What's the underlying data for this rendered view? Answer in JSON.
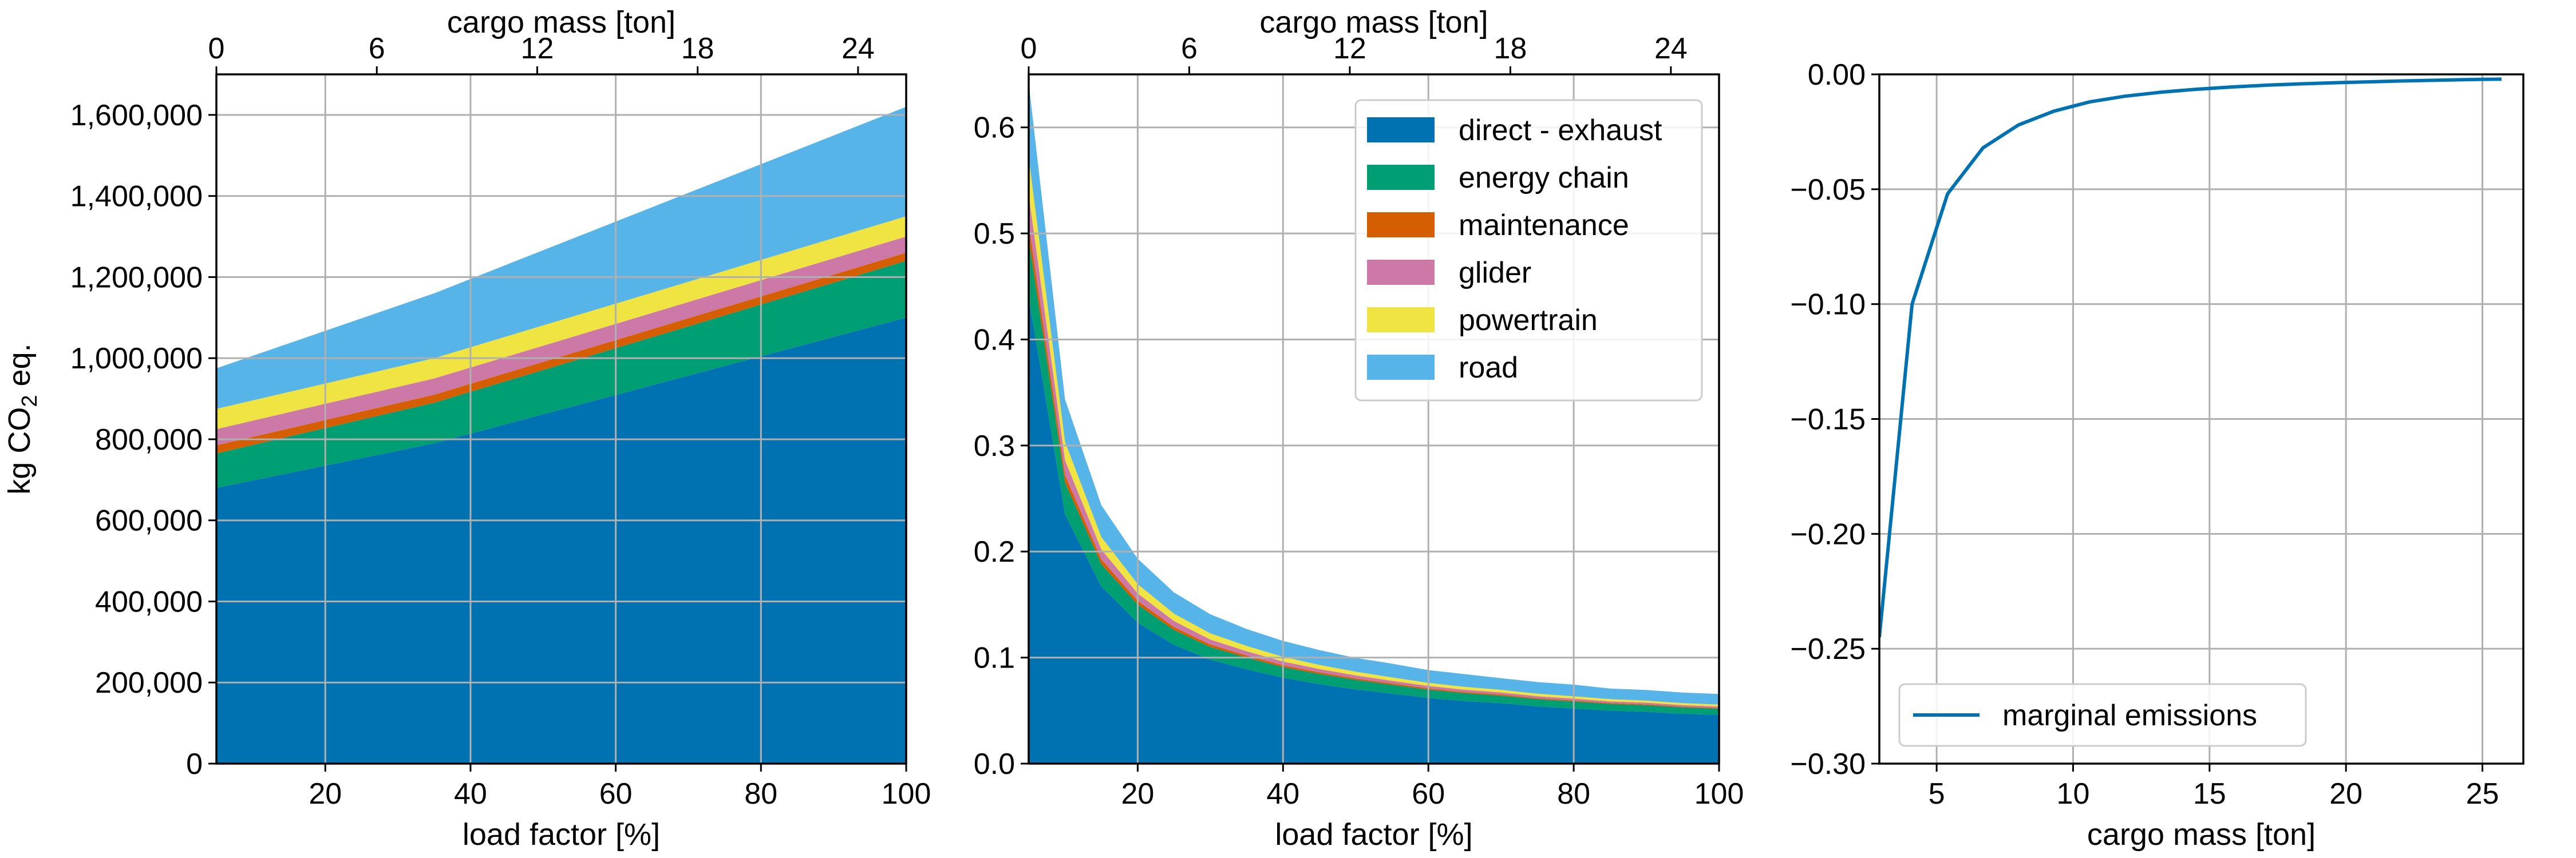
{
  "colors": {
    "direct_exhaust": "#0072B2",
    "energy_chain": "#009E73",
    "maintenance": "#D55E00",
    "glider": "#CC79A7",
    "powertrain": "#F0E442",
    "road": "#56B4E9",
    "grid": "#b0b0b0",
    "marginal_line": "#0072B2"
  },
  "chart_data": [
    {
      "type": "area",
      "stacked": true,
      "xlabel": "load factor [%]",
      "ylabel": "kg CO2 eq.",
      "ylabel_parts": {
        "prefix": "kg CO",
        "subscript": "2",
        "suffix": " eq."
      },
      "xlabel_top": "cargo mass [ton]",
      "xlim": [
        5,
        100
      ],
      "ylim": [
        0,
        1700000
      ],
      "xticks": [
        20,
        40,
        60,
        80,
        100
      ],
      "xtick_labels": [
        "20",
        "40",
        "60",
        "80",
        "100"
      ],
      "yticks": [
        0,
        200000,
        400000,
        600000,
        800000,
        1000000,
        1200000,
        1400000,
        1600000
      ],
      "ytick_labels": [
        "0",
        "200,000",
        "400,000",
        "600,000",
        "800,000",
        "1,000,000",
        "1,200,000",
        "1,400,000",
        "1,600,000"
      ],
      "top_xticks": [
        0,
        6,
        12,
        18,
        24
      ],
      "top_xtick_labels": [
        "0",
        "6",
        "12",
        "18",
        "24"
      ],
      "top_xlim": [
        0,
        25.8
      ],
      "grid": true,
      "x": [
        5,
        35,
        100
      ],
      "series": [
        {
          "name": "direct - exhaust",
          "color_key": "direct_exhaust",
          "values": [
            680000,
            790000,
            1100000
          ]
        },
        {
          "name": "energy chain",
          "color_key": "energy_chain",
          "values": [
            85000,
            100000,
            140000
          ]
        },
        {
          "name": "maintenance",
          "color_key": "maintenance",
          "values": [
            20000,
            20000,
            20000
          ]
        },
        {
          "name": "glider",
          "color_key": "glider",
          "values": [
            40000,
            40000,
            40000
          ]
        },
        {
          "name": "powertrain",
          "color_key": "powertrain",
          "values": [
            50000,
            50000,
            50000
          ]
        },
        {
          "name": "road",
          "color_key": "road",
          "values": [
            100000,
            160000,
            270000
          ]
        }
      ]
    },
    {
      "type": "area",
      "stacked": true,
      "xlabel": "load factor [%]",
      "xlabel_top": "cargo mass [ton]",
      "xlim": [
        5,
        100
      ],
      "ylim": [
        0,
        0.65
      ],
      "xticks": [
        20,
        40,
        60,
        80,
        100
      ],
      "xtick_labels": [
        "20",
        "40",
        "60",
        "80",
        "100"
      ],
      "yticks": [
        0.0,
        0.1,
        0.2,
        0.3,
        0.4,
        0.5,
        0.6
      ],
      "ytick_labels": [
        "0.0",
        "0.1",
        "0.2",
        "0.3",
        "0.4",
        "0.5",
        "0.6"
      ],
      "top_xticks": [
        0,
        6,
        12,
        18,
        24
      ],
      "top_xtick_labels": [
        "0",
        "6",
        "12",
        "18",
        "24"
      ],
      "top_xlim": [
        0,
        25.8
      ],
      "grid": true,
      "legend": "top-right",
      "x": [
        5,
        10,
        15,
        20,
        25,
        30,
        35,
        40,
        45,
        50,
        55,
        60,
        65,
        70,
        75,
        80,
        85,
        90,
        95,
        100
      ],
      "series": [
        {
          "name": "direct - exhaust",
          "color_key": "direct_exhaust",
          "values": [
            0.44,
            0.235,
            0.167,
            0.133,
            0.112,
            0.098,
            0.089,
            0.081,
            0.075,
            0.07,
            0.066,
            0.062,
            0.059,
            0.057,
            0.054,
            0.052,
            0.05,
            0.049,
            0.047,
            0.046
          ]
        },
        {
          "name": "energy chain",
          "color_key": "energy_chain",
          "values": [
            0.055,
            0.03,
            0.021,
            0.017,
            0.014,
            0.012,
            0.011,
            0.01,
            0.0095,
            0.009,
            0.0083,
            0.0078,
            0.0074,
            0.0071,
            0.0068,
            0.0066,
            0.0063,
            0.0061,
            0.006,
            0.0058
          ]
        },
        {
          "name": "maintenance",
          "color_key": "maintenance",
          "values": [
            0.014,
            0.007,
            0.0047,
            0.0035,
            0.0028,
            0.0023,
            0.002,
            0.0018,
            0.0016,
            0.0014,
            0.0013,
            0.0012,
            0.0011,
            0.001,
            0.0009,
            0.0009,
            0.0008,
            0.0008,
            0.0007,
            0.0007
          ]
        },
        {
          "name": "glider",
          "color_key": "glider",
          "values": [
            0.028,
            0.014,
            0.0093,
            0.007,
            0.0056,
            0.0047,
            0.004,
            0.0035,
            0.0031,
            0.0028,
            0.0025,
            0.0023,
            0.0022,
            0.002,
            0.0019,
            0.0018,
            0.0016,
            0.0016,
            0.0015,
            0.0014
          ]
        },
        {
          "name": "powertrain",
          "color_key": "powertrain",
          "values": [
            0.035,
            0.0175,
            0.0117,
            0.0088,
            0.007,
            0.0058,
            0.005,
            0.0044,
            0.0039,
            0.0035,
            0.0032,
            0.0029,
            0.0027,
            0.0025,
            0.0023,
            0.0022,
            0.0021,
            0.0019,
            0.0018,
            0.0018
          ]
        },
        {
          "name": "road",
          "color_key": "road",
          "values": [
            0.07,
            0.04,
            0.03,
            0.024,
            0.02,
            0.018,
            0.016,
            0.015,
            0.014,
            0.013,
            0.013,
            0.012,
            0.012,
            0.011,
            0.011,
            0.011,
            0.01,
            0.01,
            0.01,
            0.01
          ]
        }
      ]
    },
    {
      "type": "line",
      "xlabel": "cargo mass [ton]",
      "xlim": [
        2.9,
        26.5
      ],
      "ylim": [
        -0.3,
        0.0
      ],
      "xticks": [
        5,
        10,
        15,
        20,
        25
      ],
      "xtick_labels": [
        "5",
        "10",
        "15",
        "20",
        "25"
      ],
      "yticks": [
        -0.3,
        -0.25,
        -0.2,
        -0.15,
        -0.1,
        -0.05,
        0.0
      ],
      "ytick_labels": [
        "−0.30",
        "−0.25",
        "−0.20",
        "−0.15",
        "−0.10",
        "−0.05",
        "0.00"
      ],
      "grid": true,
      "legend": "bottom-left",
      "series": [
        {
          "name": "marginal emissions",
          "color_key": "marginal_line",
          "x": [
            2.9,
            4.1,
            5.4,
            6.7,
            8.0,
            9.3,
            10.6,
            11.9,
            13.2,
            14.5,
            15.8,
            17.1,
            18.4,
            19.7,
            21.0,
            22.3,
            23.6,
            24.9,
            25.7
          ],
          "y": [
            -0.245,
            -0.1,
            -0.052,
            -0.032,
            -0.022,
            -0.016,
            -0.012,
            -0.0095,
            -0.0078,
            -0.0065,
            -0.0055,
            -0.0047,
            -0.0041,
            -0.0036,
            -0.0032,
            -0.0028,
            -0.0025,
            -0.0022,
            -0.0021
          ]
        }
      ]
    }
  ]
}
